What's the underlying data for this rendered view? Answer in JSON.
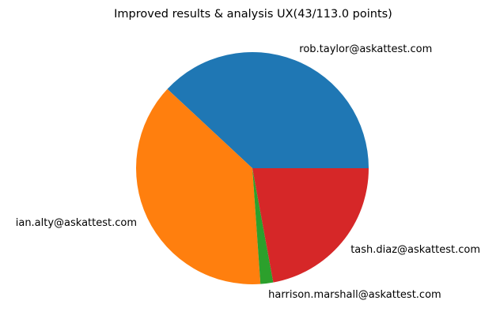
{
  "chart_data": {
    "type": "pie",
    "title": "Improved results & analysis UX(43/113.0 points)",
    "labels": [
      "rob.taylor@askattest.com",
      "ian.alty@askattest.com",
      "harrison.marshall@askattest.com",
      "tash.diaz@askattest.com"
    ],
    "values": [
      43,
      43,
      2,
      25
    ],
    "colors": [
      "#1f77b4",
      "#ff7f0e",
      "#2ca02c",
      "#d62728"
    ],
    "start_angle_deg": 0,
    "direction": "counterclockwise"
  }
}
